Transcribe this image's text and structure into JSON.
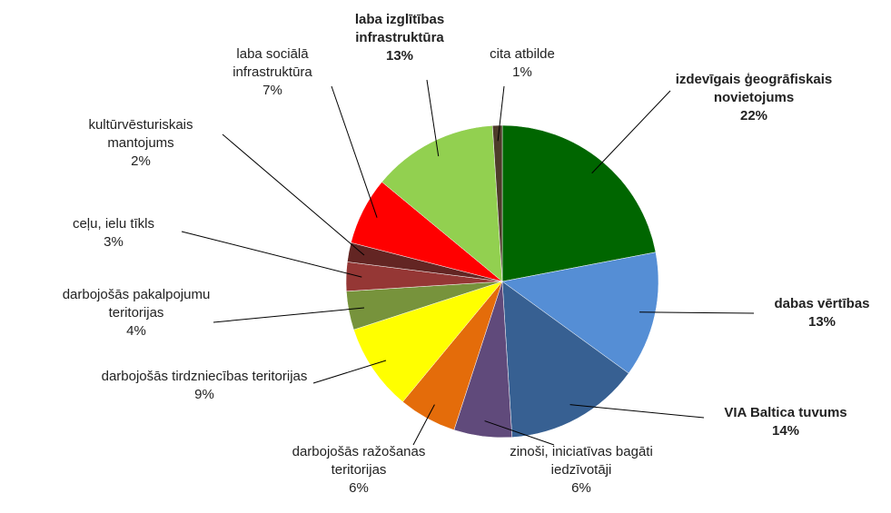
{
  "chart_data": {
    "type": "pie",
    "categories": [
      "izdevīgais ģeogrāfiskais novietojums",
      "dabas vērtības",
      "VIA Baltica tuvums",
      "zinoši, iniciatīvas bagāti iedzīvotāji",
      "darbojošās ražošanas teritorijas",
      "darbojošās tirdzniecības teritorijas",
      "darbojošās pakalpojumu teritorijas",
      "ceļu, ielu tīkls",
      "kultūrvēsturiskais mantojums",
      "laba sociālā infrastruktūra",
      "laba izglītības infrastruktūra",
      "cita atbilde"
    ],
    "values": [
      22,
      13,
      14,
      6,
      6,
      9,
      4,
      3,
      2,
      7,
      13,
      1
    ],
    "value_labels": [
      "22%",
      "13%",
      "14%",
      "6%",
      "6%",
      "9%",
      "4%",
      "3%",
      "2%",
      "7%",
      "13%",
      "1%"
    ],
    "colors": [
      "#006600",
      "#558ed5",
      "#376092",
      "#604a7b",
      "#e46c0a",
      "#ffff00",
      "#77933c",
      "#953735",
      "#632523",
      "#ff0000",
      "#92d050",
      "#4d3b2a"
    ]
  }
}
